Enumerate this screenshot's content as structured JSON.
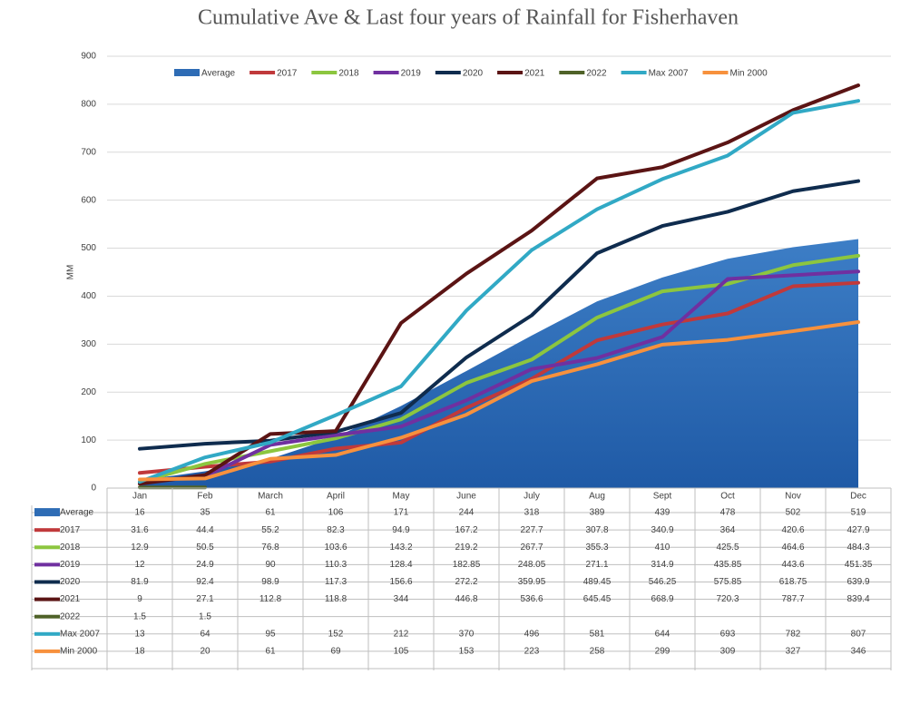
{
  "chart_data": {
    "type": "line",
    "title": "Cumulative Ave & Last four years of Rainfall for Fisherhaven",
    "y_label": "MM",
    "categories": [
      "Jan",
      "Feb",
      "March",
      "April",
      "May",
      "June",
      "July",
      "Aug",
      "Sept",
      "Oct",
      "Nov",
      "Dec"
    ],
    "ylim": [
      0,
      900
    ],
    "yticks": [
      0,
      100,
      200,
      300,
      400,
      500,
      600,
      700,
      800,
      900
    ],
    "grid": true,
    "legend": "top",
    "series": [
      {
        "name": "Average",
        "type": "area",
        "color": "#2e6cb5",
        "values": [
          16,
          35,
          61,
          106,
          171,
          244,
          318,
          389,
          439,
          478,
          502,
          519
        ]
      },
      {
        "name": "2017",
        "color": "#c0393b",
        "values": [
          31.6,
          44.4,
          55.2,
          82.3,
          94.9,
          167.2,
          227.7,
          307.8,
          340.9,
          364,
          420.6,
          427.9
        ]
      },
      {
        "name": "2018",
        "color": "#8cc63f",
        "values": [
          12.9,
          50.5,
          76.8,
          103.6,
          143.2,
          219.2,
          267.7,
          355.3,
          410,
          425.5,
          464.6,
          484.3
        ]
      },
      {
        "name": "2019",
        "color": "#7030a0",
        "values": [
          12,
          24.9,
          90,
          110.3,
          128.4,
          182.85,
          248.05,
          271.1,
          314.9,
          435.85,
          443.6,
          451.35
        ]
      },
      {
        "name": "2020",
        "color": "#0f2c4e",
        "values": [
          81.9,
          92.4,
          98.9,
          117.3,
          156.6,
          272.2,
          359.95,
          489.45,
          546.25,
          575.85,
          618.75,
          639.9
        ]
      },
      {
        "name": "2021",
        "color": "#5b1414",
        "values": [
          9,
          27.1,
          112.8,
          118.8,
          344,
          446.8,
          536.6,
          645.45,
          668.9,
          720.3,
          787.7,
          839.4
        ]
      },
      {
        "name": "2022",
        "color": "#4f6228",
        "values": [
          1.5,
          1.5,
          null,
          null,
          null,
          null,
          null,
          null,
          null,
          null,
          null,
          null
        ]
      },
      {
        "name": "Max 2007",
        "color": "#31a9c5",
        "values": [
          13,
          64,
          95,
          152,
          212,
          370,
          496,
          581,
          644,
          693,
          782,
          807
        ]
      },
      {
        "name": "Min 2000",
        "color": "#f7913d",
        "values": [
          18,
          20,
          61,
          69,
          105,
          153,
          223,
          258,
          299,
          309,
          327,
          346
        ]
      }
    ]
  }
}
